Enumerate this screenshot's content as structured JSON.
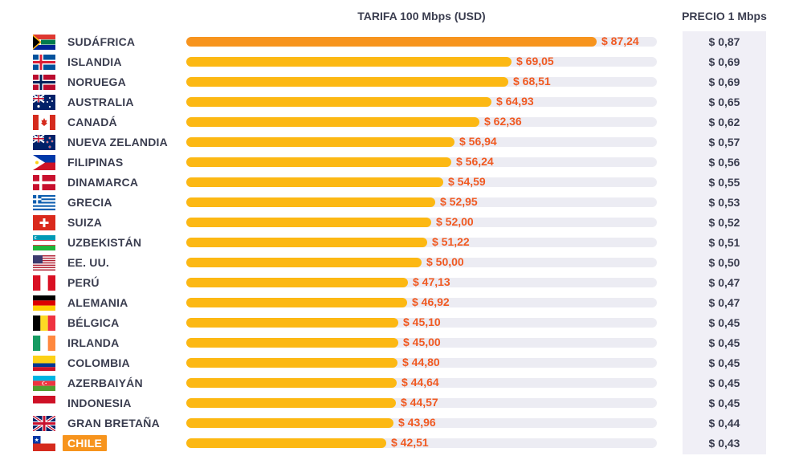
{
  "headers": {
    "tariff": "TARIFA 100 Mbps (USD)",
    "price": "PRECIO 1 Mbps"
  },
  "colors": {
    "bar": "#fcb813",
    "bar_top": "#f7941d",
    "value_text": "#f05a22",
    "track": "#ececf3",
    "price_column": "#f0eff6",
    "highlight": "#f7941d"
  },
  "chart_data": {
    "type": "bar",
    "orientation": "horizontal",
    "xlabel": "TARIFA 100 Mbps (USD)",
    "xlim": [
      0,
      100
    ],
    "grid": false,
    "categories": [
      "SUDÁFRICA",
      "ISLANDIA",
      "NORUEGA",
      "AUSTRALIA",
      "CANADÁ",
      "NUEVA ZELANDIA",
      "FILIPINAS",
      "DINAMARCA",
      "GRECIA",
      "SUIZA",
      "UZBEKISTÁN",
      "EE. UU.",
      "PERÚ",
      "ALEMANIA",
      "BÉLGICA",
      "IRLANDA",
      "COLOMBIA",
      "AZERBAIYÁN",
      "INDONESIA",
      "GRAN BRETAÑA",
      "CHILE"
    ],
    "values": [
      87.24,
      69.05,
      68.51,
      64.93,
      62.36,
      56.94,
      56.24,
      54.59,
      52.95,
      52.0,
      51.22,
      50.0,
      47.13,
      46.92,
      45.1,
      45.0,
      44.8,
      44.64,
      44.57,
      43.96,
      42.51
    ],
    "value_labels": [
      "$ 87,24",
      "$ 69,05",
      "$ 68,51",
      "$ 64,93",
      "$ 62,36",
      "$ 56,94",
      "$ 56,24",
      "$ 54,59",
      "$ 52,95",
      "$ 52,00",
      "$ 51,22",
      "$ 50,00",
      "$ 47,13",
      "$ 46,92",
      "$ 45,10",
      "$ 45,00",
      "$ 44,80",
      "$ 44,64",
      "$ 44,57",
      "$ 43,96",
      "$ 42,51"
    ],
    "price_per_mbps": [
      "$ 0,87",
      "$ 0,69",
      "$ 0,69",
      "$ 0,65",
      "$ 0,62",
      "$ 0,57",
      "$ 0,56",
      "$ 0,55",
      "$ 0,53",
      "$ 0,52",
      "$ 0,51",
      "$ 0,50",
      "$ 0,47",
      "$ 0,47",
      "$ 0,45",
      "$ 0,45",
      "$ 0,45",
      "$ 0,45",
      "$ 0,45",
      "$ 0,44",
      "$ 0,43"
    ],
    "flags": [
      "za-flag-icon",
      "is-flag-icon",
      "no-flag-icon",
      "au-flag-icon",
      "ca-flag-icon",
      "nz-flag-icon",
      "ph-flag-icon",
      "dk-flag-icon",
      "gr-flag-icon",
      "ch-flag-icon",
      "uz-flag-icon",
      "us-flag-icon",
      "pe-flag-icon",
      "de-flag-icon",
      "be-flag-icon",
      "ie-flag-icon",
      "co-flag-icon",
      "az-flag-icon",
      "id-flag-icon",
      "gb-flag-icon",
      "cl-flag-icon"
    ],
    "highlighted": "CHILE"
  }
}
